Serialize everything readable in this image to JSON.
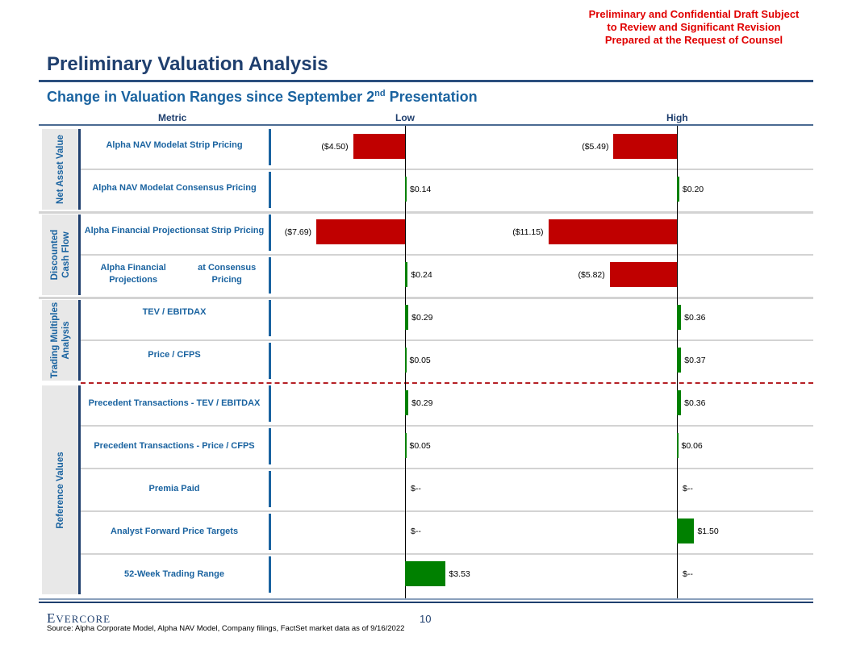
{
  "confidential_notice": [
    "Preliminary and Confidential Draft Subject",
    "to Review and Significant Revision",
    "Prepared at the Request of Counsel"
  ],
  "title": "Preliminary Valuation Analysis",
  "subtitle_main": "Change in Valuation Ranges since September 2",
  "subtitle_sup": "nd",
  "subtitle_end": " Presentation",
  "columns": {
    "metric": "Metric",
    "low": "Low",
    "high": "High"
  },
  "groups": [
    {
      "label": "Net Asset Value"
    },
    {
      "label": "Discounted\nCash Flow"
    },
    {
      "label": "Trading Multiples\nAnalysis"
    },
    {
      "label": "Reference Values"
    }
  ],
  "chart_data": {
    "type": "bar",
    "title": "Change in Valuation Ranges since September 2nd Presentation",
    "orientation": "horizontal",
    "units": "$ per share change",
    "categories": [
      "Alpha NAV Model at Strip Pricing",
      "Alpha NAV Model at Consensus Pricing",
      "Alpha Financial Projections at Strip Pricing",
      "Alpha Financial Projections at Consensus Pricing",
      "TEV / EBITDAX",
      "Price / CFPS",
      "Precedent Transactions - TEV / EBITDAX",
      "Precedent Transactions - Price / CFPS",
      "Premia Paid",
      "Analyst Forward Price Targets",
      "52-Week Trading Range"
    ],
    "category_lines": [
      [
        "Alpha NAV Model",
        "at Strip Pricing"
      ],
      [
        "Alpha NAV Model",
        "at Consensus Pricing"
      ],
      [
        "Alpha Financial Projections",
        "at Strip Pricing"
      ],
      [
        "Alpha Financial Projections",
        "at Consensus Pricing"
      ],
      [
        "TEV / EBITDAX"
      ],
      [
        "Price / CFPS"
      ],
      [
        "Precedent Transactions - TEV / EBITDAX"
      ],
      [
        "Precedent Transactions - Price / CFPS"
      ],
      [
        "Premia Paid"
      ],
      [
        "Analyst Forward Price Targets"
      ],
      [
        "52-Week Trading Range"
      ]
    ],
    "series": [
      {
        "name": "Low",
        "values": [
          -4.5,
          0.14,
          -7.69,
          0.24,
          0.29,
          0.05,
          0.29,
          0.05,
          0,
          0,
          3.53
        ],
        "labels": [
          "($4.50)",
          "$0.14",
          "($7.69)",
          "$0.24",
          "$0.29",
          "$0.05",
          "$0.29",
          "$0.05",
          "$--",
          "$--",
          "$3.53"
        ]
      },
      {
        "name": "High",
        "values": [
          -5.49,
          0.2,
          -11.15,
          -5.82,
          0.36,
          0.37,
          0.36,
          0.06,
          0,
          1.5,
          0
        ],
        "labels": [
          "($5.49)",
          "$0.20",
          "($11.15)",
          "($5.82)",
          "$0.36",
          "$0.37",
          "$0.36",
          "$0.06",
          "$--",
          "$1.50",
          "$--"
        ]
      }
    ],
    "colors": {
      "negative": "#c00000",
      "positive": "#008000"
    }
  },
  "footer": {
    "logo": "Evercore",
    "page_number": "10",
    "source": "Source: Alpha Corporate Model, Alpha NAV Model, Company filings, FactSet market data as of 9/16/2022"
  }
}
